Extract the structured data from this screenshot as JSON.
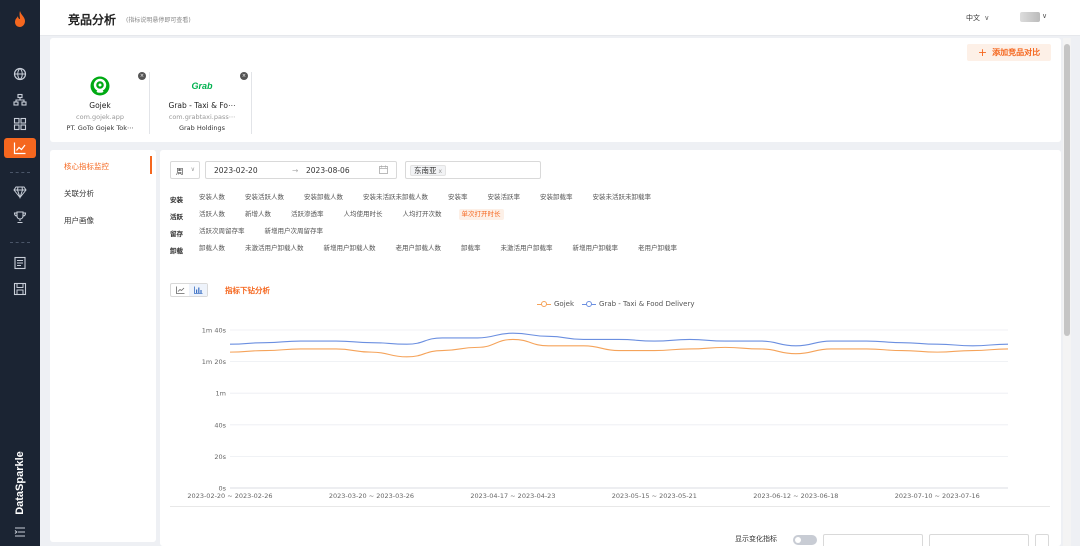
{
  "header": {
    "title": "竞品分析",
    "subtitle": "(指标说明悬停即可查看)",
    "language": "中文",
    "language_chevron": "∨",
    "avatar_chevron": "∨"
  },
  "rail": {
    "brand": "DataSparkle",
    "icons": [
      "flame-logo",
      "globe-icon",
      "hierarchy-icon",
      "grid-icon",
      "chart-line-icon",
      "diamond-icon",
      "trophy-icon",
      "report-icon",
      "save-icon",
      "menu-icon"
    ],
    "active_color": "#f5671f"
  },
  "competitors": {
    "add_label": "添加竞品对比",
    "add_icon": "+",
    "apps": [
      {
        "name": "Gojek",
        "package": "com.gojek.app",
        "publisher": "PT. GoTo Gojek Tok⋯",
        "logo_color": "#00aa13",
        "close": "×"
      },
      {
        "name": "Grab - Taxi & Fo⋯",
        "package": "com.grabtaxi.pass⋯",
        "publisher": "Grab Holdings",
        "logo_text": "Grab",
        "logo_color": "#00b14f",
        "close": "×"
      }
    ]
  },
  "subnav": {
    "items": [
      {
        "label": "核心指标监控",
        "active": true
      },
      {
        "label": "关联分析",
        "active": false
      },
      {
        "label": "用户画像",
        "active": false
      }
    ]
  },
  "filters": {
    "period": "周",
    "period_chevron": "∨",
    "date_start": "2023-02-20",
    "date_arrow": "→",
    "date_end": "2023-08-06",
    "region": "东南亚",
    "region_remove": "x"
  },
  "metrics": [
    {
      "category": "安装",
      "items": [
        "安装人数",
        "安装活跃人数",
        "安装卸载人数",
        "安装未活跃未卸载人数",
        "安装率",
        "安装活跃率",
        "安装卸载率",
        "安装未活跃未卸载率"
      ]
    },
    {
      "category": "活跃",
      "items": [
        "活跃人数",
        "新增人数",
        "活跃渗透率",
        "人均使用时长",
        "人均打开次数",
        "单次打开时长"
      ],
      "active": "单次打开时长"
    },
    {
      "category": "留存",
      "items": [
        "活跃次周留存率",
        "新增用户次周留存率"
      ]
    },
    {
      "category": "卸载",
      "items": [
        "卸载人数",
        "未激活用户卸载人数",
        "新增用户卸载人数",
        "老用户卸载人数",
        "卸载率",
        "未激活用户卸载率",
        "新增用户卸载率",
        "老用户卸载率"
      ]
    }
  ],
  "chart_section": {
    "drill_title": "指标下钻分析",
    "line_toggle_icon": "line-chart-icon",
    "bar_toggle_icon": "bar-chart-icon"
  },
  "chart_data": {
    "type": "line",
    "ylabel": "",
    "y_ticks": [
      "0s",
      "20s",
      "40s",
      "1m",
      "1m 20s",
      "1m 40s"
    ],
    "ylim": [
      0,
      100
    ],
    "x_ticks": [
      "2023-02-20 ~ 2023-02-26",
      "2023-03-20 ~ 2023-03-26",
      "2023-04-17 ~ 2023-04-23",
      "2023-05-15 ~ 2023-05-21",
      "2023-06-12 ~ 2023-06-18",
      "2023-07-10 ~ 2023-07-16"
    ],
    "x_tick_index": [
      0,
      4,
      8,
      12,
      16,
      20
    ],
    "legend_position": "top-center",
    "series": [
      {
        "name": "Gojek",
        "color": "#f5a35a",
        "values": [
          86,
          87,
          88,
          88,
          86,
          83,
          87,
          89,
          94,
          90,
          90,
          87,
          87,
          88,
          89,
          88,
          85,
          88,
          88,
          87,
          86,
          87,
          88
        ]
      },
      {
        "name": "Grab - Taxi & Food Delivery",
        "color": "#6b8fe0",
        "values": [
          91,
          92,
          93,
          93,
          92,
          91,
          95,
          95,
          98,
          96,
          94,
          94,
          93,
          94,
          93,
          93,
          90,
          93,
          93,
          92,
          91,
          90,
          91
        ]
      }
    ]
  },
  "bottom_controls": {
    "label": "显示变化指标"
  }
}
